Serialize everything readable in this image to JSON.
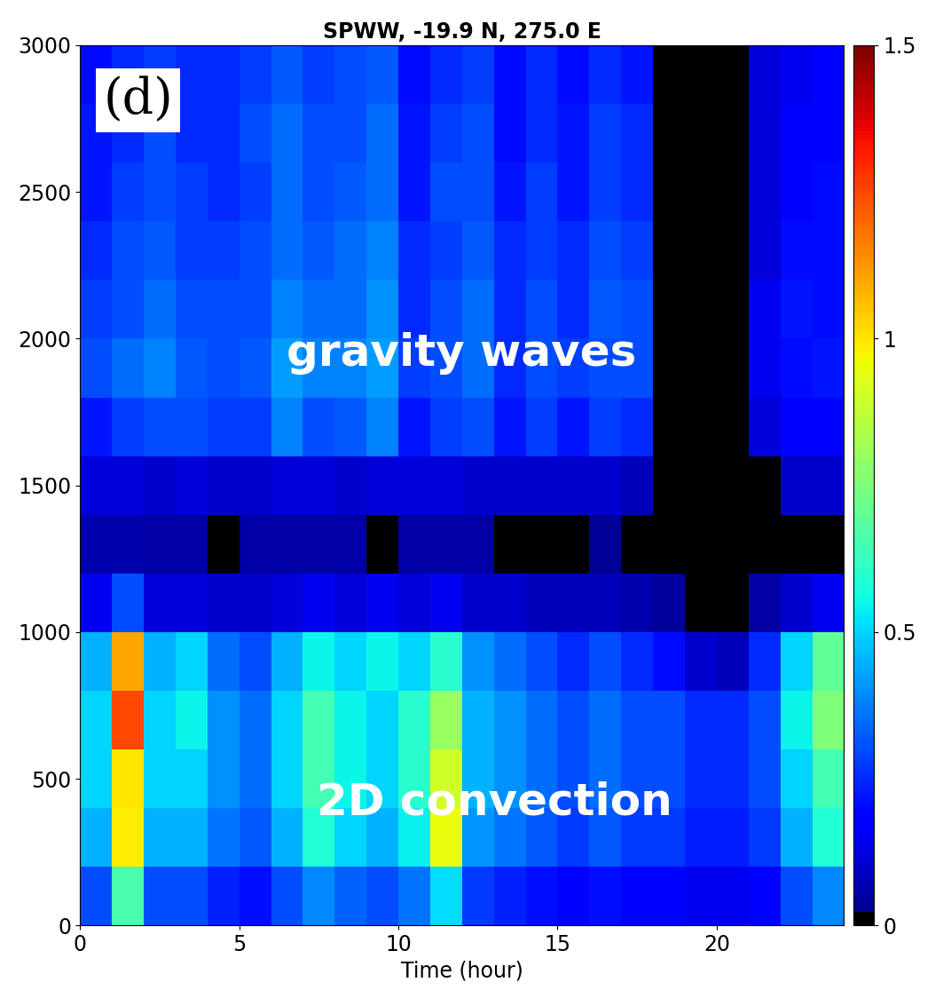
{
  "chart_data": {
    "type": "heatmap",
    "title": "SPWW, -19.9 N, 275.0 E",
    "x_label": "Time (hour)",
    "annotations": [
      "(d)",
      "gravity waves",
      "2D convection"
    ],
    "x_edges": [
      0,
      1,
      2,
      3,
      4,
      5,
      6,
      7,
      8,
      9,
      10,
      11,
      12,
      13,
      14,
      15,
      16,
      17,
      18,
      19,
      20,
      21,
      22,
      23,
      24
    ],
    "y_edges": [
      0,
      200,
      400,
      600,
      800,
      1000,
      1200,
      1400,
      1600,
      1800,
      2000,
      2200,
      2400,
      2600,
      2800,
      3000
    ],
    "cells": [
      [
        0.3,
        0.66,
        0.3,
        0.3,
        0.24,
        0.21,
        0.3,
        0.39,
        0.33,
        0.3,
        0.36,
        0.51,
        0.27,
        0.24,
        0.21,
        0.18,
        0.21,
        0.18,
        0.18,
        0.15,
        0.15,
        0.18,
        0.3,
        0.39
      ],
      [
        0.45,
        0.99,
        0.45,
        0.45,
        0.36,
        0.32,
        0.45,
        0.59,
        0.5,
        0.45,
        0.54,
        0.95,
        0.41,
        0.36,
        0.32,
        0.27,
        0.32,
        0.27,
        0.27,
        0.23,
        0.23,
        0.27,
        0.45,
        0.59
      ],
      [
        0.5,
        1.0,
        0.5,
        0.5,
        0.4,
        0.35,
        0.5,
        0.65,
        0.55,
        0.5,
        0.6,
        0.9,
        0.45,
        0.4,
        0.35,
        0.3,
        0.35,
        0.3,
        0.3,
        0.25,
        0.25,
        0.3,
        0.5,
        0.65
      ],
      [
        0.5,
        1.25,
        0.5,
        0.55,
        0.4,
        0.35,
        0.5,
        0.65,
        0.55,
        0.5,
        0.6,
        0.8,
        0.45,
        0.4,
        0.35,
        0.3,
        0.35,
        0.3,
        0.3,
        0.25,
        0.25,
        0.3,
        0.55,
        0.75
      ],
      [
        0.45,
        1.1,
        0.45,
        0.5,
        0.35,
        0.3,
        0.45,
        0.55,
        0.5,
        0.55,
        0.5,
        0.6,
        0.4,
        0.35,
        0.3,
        0.25,
        0.3,
        0.25,
        0.2,
        0.1,
        0.08,
        0.25,
        0.5,
        0.7
      ],
      [
        0.15,
        0.3,
        0.12,
        0.12,
        0.1,
        0.1,
        0.12,
        0.15,
        0.12,
        0.15,
        0.12,
        0.15,
        0.1,
        0.1,
        0.08,
        0.08,
        0.08,
        0.06,
        0.04,
        0,
        0,
        0.05,
        0.1,
        0.15
      ],
      [
        0.06,
        0.06,
        0.05,
        0.05,
        0,
        0.05,
        0.05,
        0.05,
        0.05,
        0,
        0.05,
        0.05,
        0.05,
        0,
        0.02,
        0,
        0.03,
        0,
        0,
        0,
        0,
        0.02,
        0,
        0
      ],
      [
        0.12,
        0.12,
        0.1,
        0.12,
        0.1,
        0.1,
        0.12,
        0.12,
        0.1,
        0.12,
        0.12,
        0.12,
        0.1,
        0.1,
        0.1,
        0.1,
        0.1,
        0.08,
        0,
        0,
        0,
        0,
        0.1,
        0.1
      ],
      [
        0.22,
        0.28,
        0.3,
        0.3,
        0.28,
        0.28,
        0.38,
        0.3,
        0.32,
        0.38,
        0.22,
        0.28,
        0.3,
        0.22,
        0.28,
        0.22,
        0.28,
        0.25,
        0,
        0,
        0,
        0.12,
        0.18,
        0.18
      ],
      [
        0.3,
        0.35,
        0.38,
        0.32,
        0.3,
        0.32,
        0.42,
        0.38,
        0.38,
        0.42,
        0.28,
        0.3,
        0.35,
        0.25,
        0.3,
        0.28,
        0.3,
        0.3,
        0,
        0,
        0,
        0.15,
        0.2,
        0.22
      ],
      [
        0.28,
        0.3,
        0.35,
        0.3,
        0.3,
        0.3,
        0.38,
        0.35,
        0.35,
        0.4,
        0.25,
        0.3,
        0.35,
        0.25,
        0.3,
        0.25,
        0.32,
        0.3,
        0,
        0,
        0,
        0.15,
        0.22,
        0.2
      ],
      [
        0.25,
        0.3,
        0.32,
        0.28,
        0.28,
        0.3,
        0.35,
        0.32,
        0.35,
        0.38,
        0.25,
        0.28,
        0.32,
        0.25,
        0.28,
        0.25,
        0.3,
        0.28,
        0,
        0,
        0,
        0.12,
        0.2,
        0.2
      ],
      [
        0.22,
        0.28,
        0.3,
        0.28,
        0.25,
        0.28,
        0.35,
        0.3,
        0.32,
        0.35,
        0.22,
        0.3,
        0.3,
        0.22,
        0.28,
        0.22,
        0.28,
        0.25,
        0,
        0,
        0,
        0.12,
        0.18,
        0.2
      ],
      [
        0.22,
        0.25,
        0.3,
        0.25,
        0.25,
        0.3,
        0.35,
        0.3,
        0.3,
        0.35,
        0.22,
        0.28,
        0.3,
        0.2,
        0.25,
        0.22,
        0.28,
        0.25,
        0,
        0,
        0,
        0.12,
        0.18,
        0.18
      ],
      [
        0.2,
        0.25,
        0.28,
        0.25,
        0.25,
        0.28,
        0.32,
        0.28,
        0.3,
        0.32,
        0.2,
        0.25,
        0.28,
        0.2,
        0.25,
        0.2,
        0.25,
        0.22,
        0,
        0,
        0,
        0.12,
        0.15,
        0.18
      ]
    ],
    "xlim": [
      0,
      24
    ],
    "xticks": [
      0,
      5,
      10,
      15,
      20
    ],
    "ylim": [
      0,
      3000
    ],
    "yticks": [
      0,
      500,
      1000,
      1500,
      2000,
      2500,
      3000
    ],
    "colorbar_range": [
      0,
      1.5
    ],
    "colorbar_ticks": [
      0,
      0.5,
      1,
      1.5
    ]
  }
}
